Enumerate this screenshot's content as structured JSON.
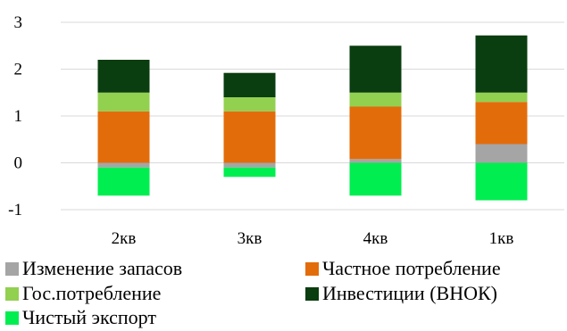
{
  "chart_data": {
    "type": "bar",
    "stacked": true,
    "categories": [
      "2кв",
      "3кв",
      "4кв",
      "1кв"
    ],
    "ylim": [
      -1,
      3
    ],
    "yticks": [
      3,
      2,
      1,
      0,
      -1
    ],
    "grid": true,
    "legend_position": "bottom",
    "title": "",
    "xlabel": "",
    "ylabel": "",
    "series": [
      {
        "name": "Изменение запасов",
        "color": "#a5a5a5",
        "values": [
          -0.1,
          -0.1,
          0.08,
          0.4
        ]
      },
      {
        "name": "Частное потребление",
        "color": "#e36c0a",
        "values": [
          1.1,
          1.1,
          1.12,
          0.9
        ]
      },
      {
        "name": "Гос.потребление",
        "color": "#92d050",
        "values": [
          0.4,
          0.3,
          0.3,
          0.2
        ]
      },
      {
        "name": "Инвестиции (ВНОК)",
        "color": "#0a3d0f",
        "values": [
          0.7,
          0.52,
          1.0,
          1.22
        ]
      },
      {
        "name": "Чистый экспорт",
        "color": "#00ee50",
        "values": [
          -0.6,
          -0.2,
          -0.7,
          -0.8
        ]
      }
    ]
  }
}
